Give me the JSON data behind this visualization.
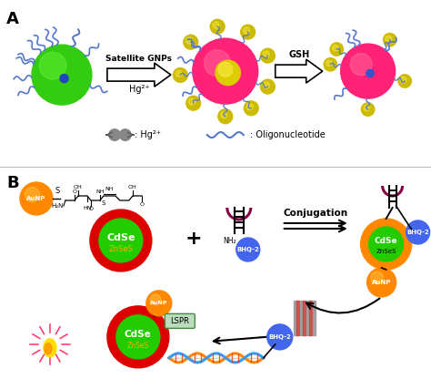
{
  "bg_color": "#ffffff",
  "panel_A_label": "A",
  "panel_B_label": "B",
  "arrow1_text_top": "Satellite GNPs",
  "arrow1_text_bot": "Hg²⁺",
  "arrow2_text": "GSH",
  "legend_hg": ": Hg²⁺",
  "legend_oligo": ": Oligonucleotide",
  "conj_text": "Conjugation",
  "lspr_text": "LSPR",
  "cdse_text": "CdSe",
  "znses_text": "ZnSeS",
  "aunp_text": "AuNP",
  "bhq2_text": "BHQ-2",
  "plus_text": "+",
  "nh3_text": "NH₂",
  "green_core": "#22cc00",
  "red_shell": "#dd0000",
  "orange_np": "#ff8800",
  "blue_bhq": "#4466ee",
  "pink_np": "#ff3388",
  "yellow_gnp": "#ccbb00",
  "magenta_loop": "#880044",
  "gray_hg": "#888888",
  "blue_oligo": "#5577cc",
  "dna_color1": "#ff8800",
  "dna_color2": "#3399ff",
  "dna_color3": "#ff3300",
  "dna_color4": "#33cc33"
}
